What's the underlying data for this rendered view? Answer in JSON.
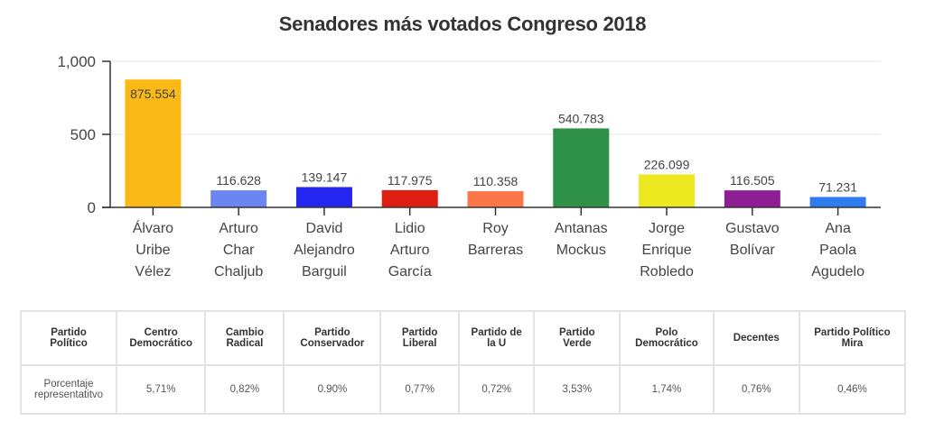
{
  "chart_data": {
    "type": "bar",
    "title": "Senadores más votados Congreso 2018",
    "xlabel": "",
    "ylabel": "",
    "ylim": [
      0,
      1000
    ],
    "yticks": [
      0,
      500,
      1000
    ],
    "ytick_labels": [
      "0",
      "500",
      "1,000"
    ],
    "grid": true,
    "legend": "none",
    "categories": [
      [
        "Álvaro",
        "Uribe",
        "Vélez"
      ],
      [
        "Arturo",
        "Char",
        "Chaljub"
      ],
      [
        "David",
        "Alejandro",
        "Barguil"
      ],
      [
        "Lidio",
        "Arturo",
        "García"
      ],
      [
        "Roy",
        "Barreras"
      ],
      [
        "Antanas",
        "Mockus"
      ],
      [
        "Jorge",
        "Enrique",
        "Robledo"
      ],
      [
        "Gustavo",
        "Bolívar"
      ],
      [
        "Ana",
        "Paola",
        "Agudelo"
      ]
    ],
    "values": [
      875.554,
      116.628,
      139.147,
      117.975,
      110.358,
      540.783,
      226.099,
      116.505,
      71.231
    ],
    "data_labels": [
      "875.554",
      "116.628",
      "139.147",
      "117.975",
      "110.358",
      "540.783",
      "226.099",
      "116.505",
      "71.231"
    ],
    "label_inside": [
      true,
      false,
      false,
      false,
      false,
      false,
      false,
      false,
      false
    ],
    "colors": [
      "#FBB917",
      "#6B85F2",
      "#2525F0",
      "#DD1E10",
      "#FB7748",
      "#2E9147",
      "#EDE921",
      "#8E1E93",
      "#2E7CF0"
    ]
  },
  "table": {
    "headers": [
      "Partido\nPolítico",
      "Centro\nDemocrático",
      "Cambio\nRadical",
      "Partido\nConservador",
      "Partido\nLiberal",
      "Partido de\nla U",
      "Partido\nVerde",
      "Polo\nDemocrático",
      "Decentes",
      "Partido Político\nMira"
    ],
    "row_label": "Porcentaje representatitvo",
    "values": [
      "5,71%",
      "0,82%",
      "0.90%",
      "0,77%",
      "0,72%",
      "3,53%",
      "1,74%",
      "0,76%",
      "0,46%"
    ]
  }
}
